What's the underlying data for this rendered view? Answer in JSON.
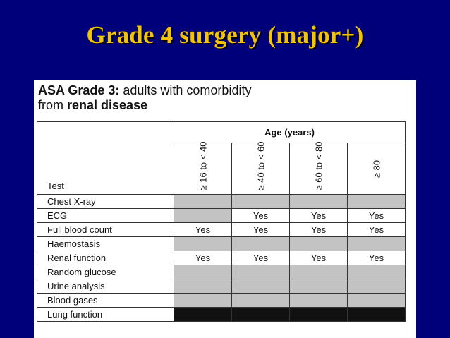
{
  "slide_title": "Grade 4 surgery (major+)",
  "panel": {
    "heading_prefix": "ASA Grade 3:",
    "heading_rest": " adults with comorbidity",
    "heading_line2_prefix": "from ",
    "heading_line2_bold": "renal disease",
    "age_header": "Age (years)",
    "test_header": "Test",
    "age_groups": [
      "≥ 16 to < 40",
      "≥ 40 to < 60",
      "≥ 60 to < 80",
      "≥ 80"
    ],
    "rows": [
      {
        "test": "Chest X-ray",
        "values": [
          "",
          "",
          "",
          ""
        ],
        "shade": [
          "gray",
          "gray",
          "gray",
          "gray"
        ]
      },
      {
        "test": "ECG",
        "values": [
          "",
          "Yes",
          "Yes",
          "Yes"
        ],
        "shade": [
          "gray",
          "white",
          "white",
          "white"
        ]
      },
      {
        "test": "Full blood count",
        "values": [
          "Yes",
          "Yes",
          "Yes",
          "Yes"
        ],
        "shade": [
          "white",
          "white",
          "white",
          "white"
        ]
      },
      {
        "test": "Haemostasis",
        "values": [
          "",
          "",
          "",
          ""
        ],
        "shade": [
          "gray",
          "gray",
          "gray",
          "gray"
        ]
      },
      {
        "test": "Renal function",
        "values": [
          "Yes",
          "Yes",
          "Yes",
          "Yes"
        ],
        "shade": [
          "white",
          "white",
          "white",
          "white"
        ]
      },
      {
        "test": "Random glucose",
        "values": [
          "",
          "",
          "",
          ""
        ],
        "shade": [
          "gray",
          "gray",
          "gray",
          "gray"
        ]
      },
      {
        "test": "Urine analysis",
        "values": [
          "",
          "",
          "",
          ""
        ],
        "shade": [
          "gray",
          "gray",
          "gray",
          "gray"
        ]
      },
      {
        "test": "Blood gases",
        "values": [
          "",
          "",
          "",
          ""
        ],
        "shade": [
          "gray",
          "gray",
          "gray",
          "gray"
        ]
      },
      {
        "test": "Lung function",
        "values": [
          "",
          "",
          "",
          ""
        ],
        "shade": [
          "black",
          "black",
          "black",
          "black"
        ]
      }
    ]
  }
}
